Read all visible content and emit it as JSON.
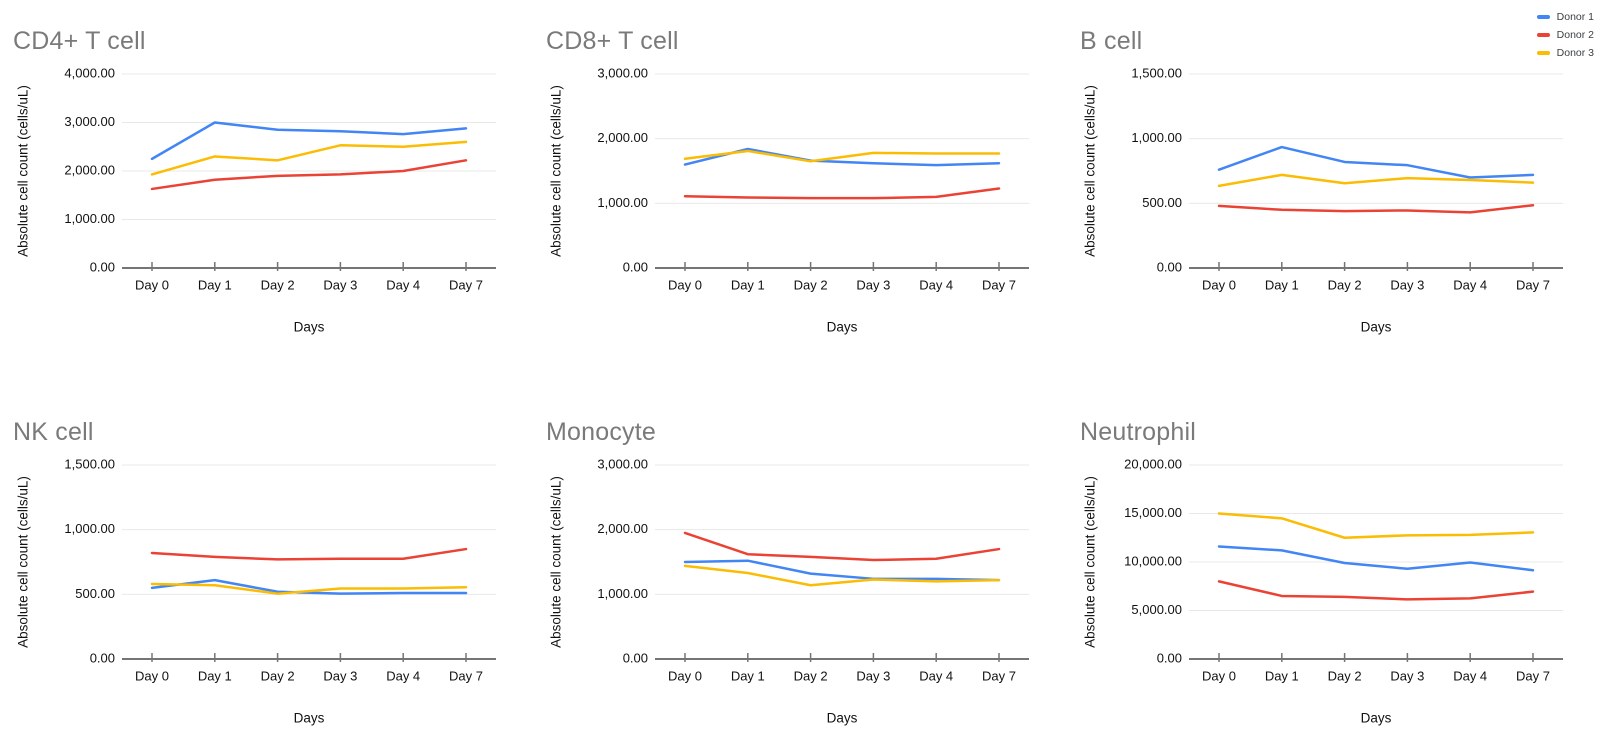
{
  "legend": {
    "items": [
      {
        "label": "Donor 1",
        "color": "#4285F4"
      },
      {
        "label": "Donor 2",
        "color": "#EA4335"
      },
      {
        "label": "Donor 3",
        "color": "#FBBC04"
      }
    ],
    "position": "top-right"
  },
  "colors": {
    "donor1": "#4285F4",
    "donor2": "#EA4335",
    "donor3": "#FBBC04",
    "title_gray": "#7a7a7a",
    "gridline": "#e8e8e8",
    "axis": "#757575"
  },
  "chart_data": [
    {
      "type": "line",
      "title": "CD4+ T cell",
      "xlabel": "Days",
      "ylabel": "Absolute cell count (cells/uL)",
      "categories": [
        "Day 0",
        "Day 1",
        "Day 2",
        "Day 3",
        "Day 4",
        "Day 7"
      ],
      "ylim": [
        0,
        4000
      ],
      "yticks": [
        0,
        1000,
        2000,
        3000,
        4000
      ],
      "grid": true,
      "series": [
        {
          "name": "Donor 1",
          "color": "#4285F4",
          "values": [
            2250,
            3000,
            2850,
            2820,
            2760,
            2880
          ]
        },
        {
          "name": "Donor 2",
          "color": "#EA4335",
          "values": [
            1630,
            1820,
            1900,
            1930,
            2000,
            2220
          ]
        },
        {
          "name": "Donor 3",
          "color": "#FBBC04",
          "values": [
            1930,
            2300,
            2220,
            2530,
            2500,
            2600
          ]
        }
      ]
    },
    {
      "type": "line",
      "title": "CD8+ T cell",
      "xlabel": "Days",
      "ylabel": "Absolute cell count (cells/uL)",
      "categories": [
        "Day 0",
        "Day 1",
        "Day 2",
        "Day 3",
        "Day 4",
        "Day 7"
      ],
      "ylim": [
        0,
        3000
      ],
      "yticks": [
        0,
        1000,
        2000,
        3000
      ],
      "grid": true,
      "series": [
        {
          "name": "Donor 1",
          "color": "#4285F4",
          "values": [
            1600,
            1840,
            1660,
            1620,
            1590,
            1620
          ]
        },
        {
          "name": "Donor 2",
          "color": "#EA4335",
          "values": [
            1110,
            1090,
            1080,
            1080,
            1100,
            1230
          ]
        },
        {
          "name": "Donor 3",
          "color": "#FBBC04",
          "values": [
            1690,
            1810,
            1650,
            1780,
            1770,
            1770
          ]
        }
      ]
    },
    {
      "type": "line",
      "title": "B cell",
      "xlabel": "Days",
      "ylabel": "Absolute cell count (cells/uL)",
      "categories": [
        "Day 0",
        "Day 1",
        "Day 2",
        "Day 3",
        "Day 4",
        "Day 7"
      ],
      "ylim": [
        0,
        1500
      ],
      "yticks": [
        0,
        500,
        1000,
        1500
      ],
      "grid": true,
      "series": [
        {
          "name": "Donor 1",
          "color": "#4285F4",
          "values": [
            760,
            935,
            820,
            795,
            700,
            720
          ]
        },
        {
          "name": "Donor 2",
          "color": "#EA4335",
          "values": [
            480,
            450,
            440,
            445,
            430,
            485
          ]
        },
        {
          "name": "Donor 3",
          "color": "#FBBC04",
          "values": [
            635,
            720,
            655,
            695,
            680,
            660
          ]
        }
      ]
    },
    {
      "type": "line",
      "title": "NK cell",
      "xlabel": "Days",
      "ylabel": "Absolute cell count (cells/uL)",
      "categories": [
        "Day 0",
        "Day 1",
        "Day 2",
        "Day 3",
        "Day 4",
        "Day 7"
      ],
      "ylim": [
        0,
        1500
      ],
      "yticks": [
        0,
        500,
        1000,
        1500
      ],
      "grid": true,
      "series": [
        {
          "name": "Donor 1",
          "color": "#4285F4",
          "values": [
            550,
            610,
            520,
            505,
            510,
            510
          ]
        },
        {
          "name": "Donor 2",
          "color": "#EA4335",
          "values": [
            820,
            790,
            770,
            775,
            775,
            850
          ]
        },
        {
          "name": "Donor 3",
          "color": "#FBBC04",
          "values": [
            580,
            570,
            505,
            545,
            545,
            555
          ]
        }
      ]
    },
    {
      "type": "line",
      "title": "Monocyte",
      "xlabel": "Days",
      "ylabel": "Absolute cell count (cells/uL)",
      "categories": [
        "Day 0",
        "Day 1",
        "Day 2",
        "Day 3",
        "Day 4",
        "Day 7"
      ],
      "ylim": [
        0,
        3000
      ],
      "yticks": [
        0,
        1000,
        2000,
        3000
      ],
      "grid": true,
      "series": [
        {
          "name": "Donor 1",
          "color": "#4285F4",
          "values": [
            1500,
            1520,
            1320,
            1240,
            1240,
            1220
          ]
        },
        {
          "name": "Donor 2",
          "color": "#EA4335",
          "values": [
            1950,
            1620,
            1580,
            1530,
            1550,
            1700
          ]
        },
        {
          "name": "Donor 3",
          "color": "#FBBC04",
          "values": [
            1440,
            1330,
            1140,
            1230,
            1200,
            1220
          ]
        }
      ]
    },
    {
      "type": "line",
      "title": "Neutrophil",
      "xlabel": "Days",
      "ylabel": "Absolute cell count (cells/uL)",
      "categories": [
        "Day 0",
        "Day 1",
        "Day 2",
        "Day 3",
        "Day 4",
        "Day 7"
      ],
      "ylim": [
        0,
        20000
      ],
      "yticks": [
        0,
        5000,
        10000,
        15000,
        20000
      ],
      "grid": true,
      "series": [
        {
          "name": "Donor 1",
          "color": "#4285F4",
          "values": [
            11600,
            11200,
            9900,
            9300,
            9950,
            9150
          ]
        },
        {
          "name": "Donor 2",
          "color": "#EA4335",
          "values": [
            8000,
            6500,
            6400,
            6150,
            6250,
            6950
          ]
        },
        {
          "name": "Donor 3",
          "color": "#FBBC04",
          "values": [
            15000,
            14500,
            12500,
            12750,
            12800,
            13050
          ]
        }
      ]
    }
  ]
}
